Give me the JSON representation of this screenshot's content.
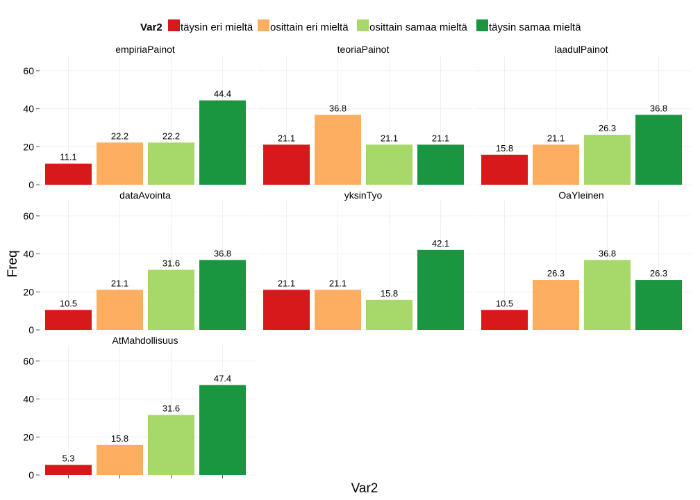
{
  "chart_data": {
    "type": "bar",
    "xlabel": "Var2",
    "ylabel": "Freq",
    "ylim": [
      0,
      68
    ],
    "yticks": [
      0,
      20,
      40,
      60
    ],
    "legend": {
      "title": "Var2",
      "position": "top",
      "entries": [
        {
          "label": "täysin eri mieltä",
          "color": "#d7191c"
        },
        {
          "label": "osittain eri mieltä",
          "color": "#fdae61"
        },
        {
          "label": "osittain samaa mieltä",
          "color": "#a6d96a"
        },
        {
          "label": "täysin samaa mieltä",
          "color": "#1a9641"
        }
      ]
    },
    "categories": [
      "täysin eri mieltä",
      "osittain eri mieltä",
      "osittain samaa mieltä",
      "täysin samaa mieltä"
    ],
    "panels": [
      {
        "title": "empiriaPainot",
        "values": [
          11.1,
          22.2,
          22.2,
          44.4
        ],
        "labels": [
          "11.1",
          "22.2",
          "22.2",
          "44.4"
        ]
      },
      {
        "title": "teoriaPainot",
        "values": [
          21.1,
          36.8,
          21.1,
          21.1
        ],
        "labels": [
          "21.1",
          "36.8",
          "21.1",
          "21.1"
        ]
      },
      {
        "title": "laadulPainot",
        "values": [
          15.8,
          21.1,
          26.3,
          36.8
        ],
        "labels": [
          "15.8",
          "21.1",
          "26.3",
          "36.8"
        ]
      },
      {
        "title": "dataAvointa",
        "values": [
          10.5,
          21.1,
          31.6,
          36.8
        ],
        "labels": [
          "10.5",
          "21.1",
          "31.6",
          "36.8"
        ]
      },
      {
        "title": "yksinTyo",
        "values": [
          21.1,
          21.1,
          15.8,
          42.1
        ],
        "labels": [
          "21.1",
          "21.1",
          "15.8",
          "42.1"
        ]
      },
      {
        "title": "OaYleinen",
        "values": [
          10.5,
          26.3,
          36.8,
          26.3
        ],
        "labels": [
          "10.5",
          "26.3",
          "36.8",
          "26.3"
        ]
      },
      {
        "title": "AtMahdollisuus",
        "values": [
          5.3,
          15.8,
          31.6,
          47.4
        ],
        "labels": [
          "5.3",
          "15.8",
          "31.6",
          "47.4"
        ]
      }
    ]
  }
}
